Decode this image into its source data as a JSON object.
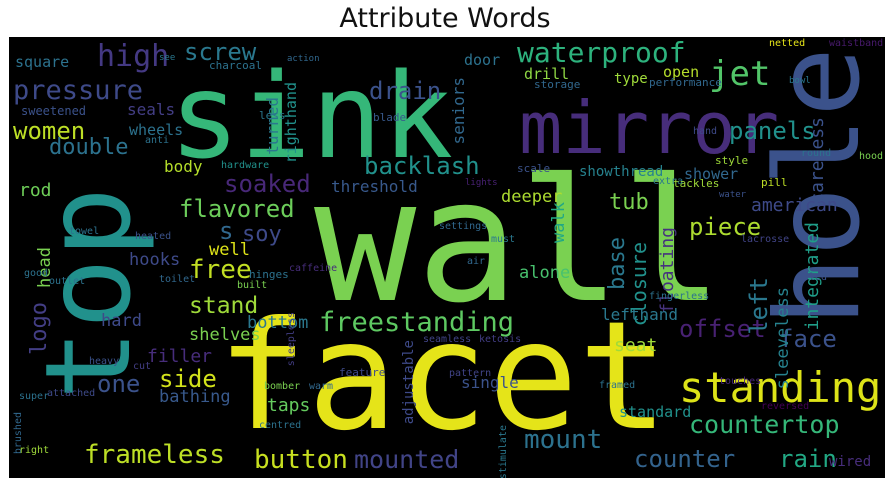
{
  "title": "Attribute Words",
  "words": [
    {
      "text": "sink",
      "color": "#35b779"
    },
    {
      "text": "wall",
      "color": "#7ad151"
    },
    {
      "text": "facet",
      "color": "#e5e419"
    },
    {
      "text": "top",
      "color": "#21918c"
    },
    {
      "text": "hole",
      "color": "#3b528b"
    },
    {
      "text": "mirror",
      "color": "#472d7b"
    },
    {
      "text": "standing",
      "color": "#dde318"
    },
    {
      "text": "waterproof",
      "color": "#2db27d"
    },
    {
      "text": "freestanding",
      "color": "#5ec962"
    },
    {
      "text": "pressure",
      "color": "#3e4a89"
    },
    {
      "text": "backlash",
      "color": "#21918c"
    },
    {
      "text": "jet",
      "color": "#52c569"
    },
    {
      "text": "high",
      "color": "#443983"
    },
    {
      "text": "screw",
      "color": "#2a788e"
    },
    {
      "text": "drain",
      "color": "#3b528b"
    },
    {
      "text": "women",
      "color": "#bddf26"
    },
    {
      "text": "double",
      "color": "#2c728e"
    },
    {
      "text": "panels",
      "color": "#21918c"
    },
    {
      "text": "soaked",
      "color": "#482878"
    },
    {
      "text": "flavored",
      "color": "#6ccd5a"
    },
    {
      "text": "countertop",
      "color": "#35b779"
    },
    {
      "text": "frameless",
      "color": "#bddf26"
    },
    {
      "text": "button",
      "color": "#c8e020"
    },
    {
      "text": "mounted",
      "color": "#414487"
    },
    {
      "text": "mount",
      "color": "#2c728e"
    },
    {
      "text": "counter",
      "color": "#33638d"
    },
    {
      "text": "rain",
      "color": "#22a884"
    },
    {
      "text": "free",
      "color": "#c2df23"
    },
    {
      "text": "stand",
      "color": "#9fda3a"
    },
    {
      "text": "side",
      "color": "#d2e21b"
    },
    {
      "text": "one",
      "color": "#3b528b"
    },
    {
      "text": "offset",
      "color": "#482173"
    },
    {
      "text": "face",
      "color": "#3b528b"
    },
    {
      "text": "tub",
      "color": "#7ad151"
    },
    {
      "text": "piece",
      "color": "#addc30"
    },
    {
      "text": "s",
      "color": "#31688e"
    },
    {
      "text": "soy",
      "color": "#3e4a89"
    },
    {
      "text": "logo",
      "color": "#433e85"
    },
    {
      "text": "left",
      "color": "#2a788e"
    },
    {
      "text": "base",
      "color": "#2a788e"
    },
    {
      "text": "closure",
      "color": "#21918c"
    },
    {
      "text": "floating",
      "color": "#46337e"
    },
    {
      "text": "integrated",
      "color": "#1f9e89"
    },
    {
      "text": "american",
      "color": "#3e4a89"
    },
    {
      "text": "sleeveless",
      "color": "#26828e"
    },
    {
      "text": "careless",
      "color": "#3b528b"
    },
    {
      "text": "rod",
      "color": "#6ece58"
    },
    {
      "text": "head",
      "color": "#7ad151"
    },
    {
      "text": "body",
      "color": "#b5de2b"
    },
    {
      "text": "hooks",
      "color": "#3e4a89"
    },
    {
      "text": "well",
      "color": "#dde318"
    },
    {
      "text": "bottom",
      "color": "#2a788e"
    },
    {
      "text": "hard",
      "color": "#3e4a89"
    },
    {
      "text": "shelves",
      "color": "#7ad151"
    },
    {
      "text": "filler",
      "color": "#472d7b"
    },
    {
      "text": "bathing",
      "color": "#38598c"
    },
    {
      "text": "taps",
      "color": "#65cb5e"
    },
    {
      "text": "alone",
      "color": "#48c16e"
    },
    {
      "text": "deeper",
      "color": "#addc30"
    },
    {
      "text": "walk",
      "color": "#22a884"
    },
    {
      "text": "seat",
      "color": "#9fda3a"
    },
    {
      "text": "lefthand",
      "color": "#2a788e"
    },
    {
      "text": "threshold",
      "color": "#38598c"
    },
    {
      "text": "shower",
      "color": "#31688e"
    },
    {
      "text": "showthread",
      "color": "#26828e"
    },
    {
      "text": "square",
      "color": "#2c728e"
    },
    {
      "text": "seals",
      "color": "#433e85"
    },
    {
      "text": "wheels",
      "color": "#2c728e"
    },
    {
      "text": "turned",
      "color": "#2a788e"
    },
    {
      "text": "righthand",
      "color": "#21918c"
    },
    {
      "text": "seniors",
      "color": "#31688e"
    },
    {
      "text": "door",
      "color": "#2c728e"
    },
    {
      "text": "drill",
      "color": "#8fd744"
    },
    {
      "text": "open",
      "color": "#b5de2b"
    },
    {
      "text": "type",
      "color": "#9fda3a"
    },
    {
      "text": "adjustable",
      "color": "#3e4a89"
    },
    {
      "text": "single",
      "color": "#3b528b"
    },
    {
      "text": "standard",
      "color": "#21918c"
    },
    {
      "text": "wired",
      "color": "#472d7b"
    },
    {
      "text": "sweetened",
      "color": "#3b528b"
    },
    {
      "text": "charcoal",
      "color": "#2c728e"
    },
    {
      "text": "netted",
      "color": "#e5e419"
    },
    {
      "text": "waistband",
      "color": "#481a6c"
    },
    {
      "text": "performance",
      "color": "#31688e"
    },
    {
      "text": "storage",
      "color": "#31688e"
    },
    {
      "text": "blade",
      "color": "#38598c"
    },
    {
      "text": "less",
      "color": "#2a788e"
    },
    {
      "text": "hand",
      "color": "#3e4a89"
    },
    {
      "text": "round",
      "color": "#2c728e"
    },
    {
      "text": "style",
      "color": "#9fda3a"
    },
    {
      "text": "hardware",
      "color": "#21918c"
    },
    {
      "text": "scale",
      "color": "#3b528b"
    },
    {
      "text": "extra",
      "color": "#2a788e"
    },
    {
      "text": "tackles",
      "color": "#9fda3a"
    },
    {
      "text": "pill",
      "color": "#bddf26"
    },
    {
      "text": "hood",
      "color": "#7ad151"
    },
    {
      "text": "towel",
      "color": "#2c728e"
    },
    {
      "text": "heated",
      "color": "#3b528b"
    },
    {
      "text": "hinges",
      "color": "#2c728e"
    },
    {
      "text": "settings",
      "color": "#31688e"
    },
    {
      "text": "must",
      "color": "#2a788e"
    },
    {
      "text": "air",
      "color": "#31688e"
    },
    {
      "text": "outlet",
      "color": "#2c728e"
    },
    {
      "text": "built",
      "color": "#7ad151"
    },
    {
      "text": "caffeine",
      "color": "#472d7b"
    },
    {
      "text": "lacrosse",
      "color": "#414487"
    },
    {
      "text": "led",
      "color": "#3b528b"
    },
    {
      "text": "good",
      "color": "#2c728e"
    },
    {
      "text": "toilet",
      "color": "#31688e"
    },
    {
      "text": "sleepless",
      "color": "#433e85"
    },
    {
      "text": "seamless",
      "color": "#414487"
    },
    {
      "text": "ketosis",
      "color": "#433e85"
    },
    {
      "text": "fingerless",
      "color": "#2c728e"
    },
    {
      "text": "feature",
      "color": "#3e4a89"
    },
    {
      "text": "pattern",
      "color": "#414487"
    },
    {
      "text": "touches",
      "color": "#482878"
    },
    {
      "text": "heavy",
      "color": "#3b528b"
    },
    {
      "text": "cut",
      "color": "#433e85"
    },
    {
      "text": "brushed",
      "color": "#31688e"
    },
    {
      "text": "attached",
      "color": "#3e4a89"
    },
    {
      "text": "super",
      "color": "#2c728e"
    },
    {
      "text": "bomber",
      "color": "#7ad151"
    },
    {
      "text": "warm",
      "color": "#31688e"
    },
    {
      "text": "centred",
      "color": "#2c728e"
    },
    {
      "text": "stimulate",
      "color": "#2a788e"
    },
    {
      "text": "framed",
      "color": "#2c728e"
    },
    {
      "text": "reversed",
      "color": "#440154"
    },
    {
      "text": "right",
      "color": "#9fda3a"
    },
    {
      "text": "see",
      "color": "#2a788e"
    },
    {
      "text": "anti",
      "color": "#2c728e"
    },
    {
      "text": "lights",
      "color": "#482173"
    },
    {
      "text": "water",
      "color": "#3b528b"
    },
    {
      "text": "action",
      "color": "#31688e"
    },
    {
      "text": "bowl",
      "color": "#2a788e"
    }
  ]
}
